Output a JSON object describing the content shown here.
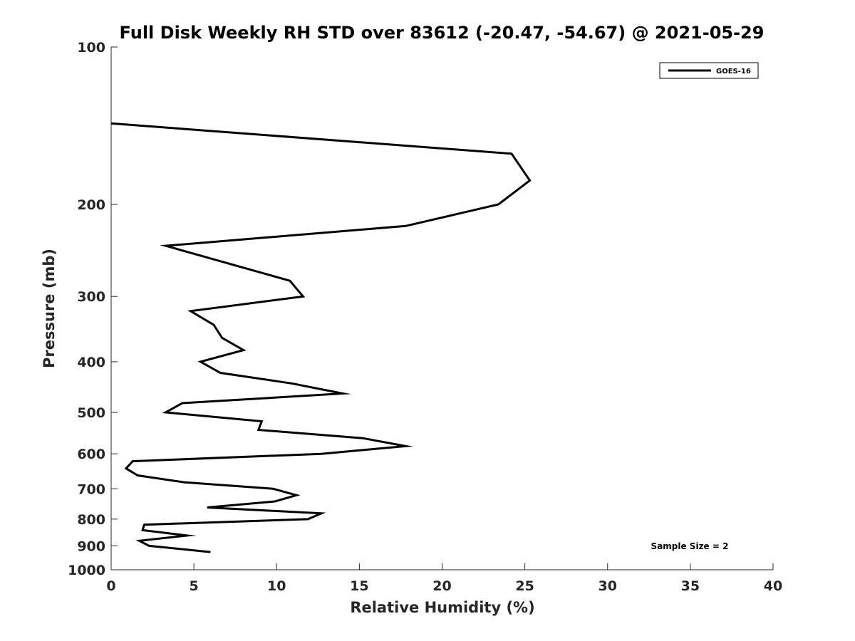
{
  "chart_data": {
    "type": "line",
    "title": "Full Disk Weekly RH STD over 83612 (-20.47, -54.67) @ 2021-05-29",
    "xlabel": "Relative Humidity (%)",
    "ylabel": "Pressure (mb)",
    "xlim": [
      0,
      40
    ],
    "ylim": [
      100,
      1000
    ],
    "y_scale": "log",
    "y_reversed": true,
    "x_ticks": [
      0,
      5,
      10,
      15,
      20,
      25,
      30,
      35,
      40
    ],
    "x_tick_labels": [
      "0",
      "5",
      "10",
      "15",
      "20",
      "25",
      "30",
      "35",
      "40"
    ],
    "y_ticks": [
      100,
      200,
      300,
      400,
      500,
      600,
      700,
      800,
      900,
      1000
    ],
    "y_tick_labels": [
      "100",
      "200",
      "300",
      "400",
      "500",
      "600",
      "700",
      "800",
      "900",
      "1000"
    ],
    "grid": false,
    "legend_position": "top-right",
    "series": [
      {
        "name": "GOES-16",
        "color": "#000000",
        "x": [
          0.0,
          24.2,
          25.3,
          23.4,
          17.8,
          3.3,
          10.8,
          11.6,
          4.8,
          6.2,
          6.7,
          8.0,
          5.4,
          6.6,
          10.9,
          14.0,
          4.3,
          3.3,
          9.1,
          8.9,
          15.2,
          17.8,
          12.7,
          1.3,
          0.9,
          1.6,
          4.4,
          9.8,
          11.2,
          9.9,
          5.8,
          12.7,
          11.9,
          2.0,
          1.9,
          4.6,
          1.7,
          2.3,
          6.0
        ],
        "y": [
          140,
          160,
          180,
          200,
          220,
          240,
          280,
          300,
          320,
          340,
          360,
          380,
          400,
          420,
          440,
          460,
          480,
          500,
          520,
          540,
          560,
          580,
          600,
          620,
          640,
          660,
          680,
          700,
          720,
          740,
          760,
          780,
          800,
          820,
          840,
          860,
          880,
          900,
          925
        ]
      }
    ],
    "annotations": [
      "Sample Size = 2"
    ]
  }
}
